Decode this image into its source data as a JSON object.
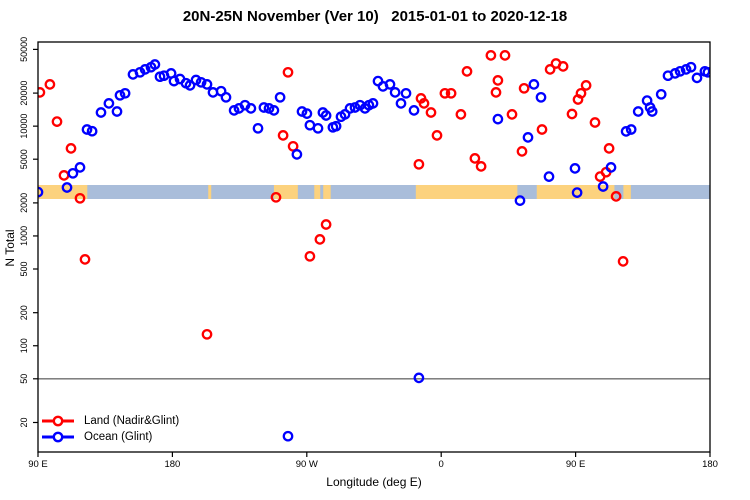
{
  "page": {
    "background": "#ffffff"
  },
  "chart_data": {
    "type": "scatter",
    "title": "20N-25N November (Ver 10)   2015-01-01 to 2020-12-18",
    "xlabel": "Longitude (deg E)",
    "ylabel": "N Total",
    "x_axis": {
      "description": "longitude, spanning 450 degrees eastward starting at 90E (wraps past dateline and Greenwich)",
      "range_deg": [
        0,
        450
      ],
      "tick_positions_deg": [
        0,
        90,
        180,
        270,
        360,
        450
      ],
      "tick_labels": [
        "90 E",
        "180",
        "90 W",
        "0",
        "90 E",
        "180"
      ]
    },
    "y_axis": {
      "scale": "log10",
      "range": [
        11,
        58000
      ],
      "tick_values": [
        20,
        50,
        100,
        200,
        500,
        1000,
        2000,
        5000,
        10000,
        20000,
        50000
      ],
      "tick_labels": [
        "20",
        "50",
        "100",
        "200",
        "500",
        "1000",
        "2000",
        "5000",
        "10000",
        "20000",
        "50000"
      ]
    },
    "reference_line": {
      "y_value": 50,
      "color": "#6e6e6e"
    },
    "map_strip": {
      "center_value": 2500,
      "ocean_color": "#a9bdda",
      "land_color": "#fcd27e",
      "land_segments_deg": [
        [
          0,
          33
        ],
        [
          114,
          116
        ],
        [
          158,
          174
        ],
        [
          185,
          189
        ],
        [
          191,
          196
        ],
        [
          253,
          321
        ],
        [
          334,
          386
        ],
        [
          392,
          397
        ]
      ]
    },
    "legend": {
      "position": "bottom-left",
      "entries": [
        {
          "label": "Land (Nadir&Glint)",
          "color": "#ff0000"
        },
        {
          "label": "Ocean (Glint)",
          "color": "#0000ff"
        }
      ]
    },
    "series": [
      {
        "name": "Land (Nadir&Glint)",
        "color": "#ff0000",
        "marker": "open-circle",
        "points": [
          [
            1.3,
            20300
          ],
          [
            8,
            24000
          ],
          [
            12.7,
            11000
          ],
          [
            17.4,
            3560
          ],
          [
            22.1,
            6270
          ],
          [
            28.1,
            2200
          ],
          [
            31.5,
            612
          ],
          [
            113.2,
            127
          ],
          [
            159.4,
            2250
          ],
          [
            164.1,
            8240
          ],
          [
            167.4,
            30900
          ],
          [
            170.8,
            6550
          ],
          [
            182.1,
            652
          ],
          [
            188.8,
            931
          ],
          [
            192.9,
            1270
          ],
          [
            255.1,
            4490
          ],
          [
            256.5,
            17900
          ],
          [
            258.5,
            16100
          ],
          [
            263.2,
            13300
          ],
          [
            267.2,
            8240
          ],
          [
            272.5,
            19900
          ],
          [
            276.6,
            19900
          ],
          [
            283.2,
            12800
          ],
          [
            287.3,
            31500
          ],
          [
            292.6,
            5080
          ],
          [
            296.7,
            4300
          ],
          [
            303.3,
            44100
          ],
          [
            306.7,
            20300
          ],
          [
            308,
            26100
          ],
          [
            312.7,
            44100
          ],
          [
            317.4,
            12800
          ],
          [
            324.1,
            5890
          ],
          [
            325.5,
            22100
          ],
          [
            337.5,
            9330
          ],
          [
            342.9,
            32900
          ],
          [
            346.9,
            37200
          ],
          [
            351.6,
            35000
          ],
          [
            357.6,
            12900
          ],
          [
            361.6,
            17500
          ],
          [
            363.6,
            19900
          ],
          [
            367,
            23500
          ],
          [
            373,
            10800
          ],
          [
            376.4,
            3470
          ],
          [
            380.4,
            3810
          ],
          [
            382.4,
            6270
          ],
          [
            387.1,
            2290
          ],
          [
            391.8,
            586
          ]
        ]
      },
      {
        "name": "Ocean (Glint)",
        "color": "#0000ff",
        "marker": "open-circle",
        "points": [
          [
            0,
            2510
          ],
          [
            19.4,
            2760
          ],
          [
            23.4,
            3720
          ],
          [
            28.1,
            4210
          ],
          [
            32.8,
            9330
          ],
          [
            36.2,
            9000
          ],
          [
            42.2,
            13300
          ],
          [
            47.5,
            16100
          ],
          [
            52.9,
            13600
          ],
          [
            54.9,
            19100
          ],
          [
            58.3,
            19900
          ],
          [
            63.6,
            29600
          ],
          [
            68.3,
            30900
          ],
          [
            71.7,
            32900
          ],
          [
            75.7,
            34400
          ],
          [
            78.3,
            36400
          ],
          [
            81.7,
            28200
          ],
          [
            84.4,
            28800
          ],
          [
            89.1,
            30200
          ],
          [
            91.1,
            25700
          ],
          [
            95.1,
            26900
          ],
          [
            99.1,
            24600
          ],
          [
            101.8,
            23500
          ],
          [
            105.8,
            26300
          ],
          [
            109.2,
            25100
          ],
          [
            113.2,
            24000
          ],
          [
            117.2,
            20300
          ],
          [
            122.6,
            20800
          ],
          [
            125.9,
            18300
          ],
          [
            131.3,
            13900
          ],
          [
            134.6,
            14500
          ],
          [
            138.6,
            15500
          ],
          [
            142.6,
            14500
          ],
          [
            147.3,
            9550
          ],
          [
            151.3,
            14800
          ],
          [
            154.7,
            14500
          ],
          [
            158,
            13900
          ],
          [
            162.1,
            18300
          ],
          [
            167.4,
            15
          ],
          [
            173.4,
            5530
          ],
          [
            176.8,
            13600
          ],
          [
            180.1,
            13000
          ],
          [
            182.1,
            10200
          ],
          [
            187.5,
            9550
          ],
          [
            190.8,
            13300
          ],
          [
            192.9,
            12500
          ],
          [
            197.5,
            9760
          ],
          [
            199.6,
            9980
          ],
          [
            202.9,
            12200
          ],
          [
            205.6,
            12800
          ],
          [
            208.9,
            14500
          ],
          [
            212.3,
            14800
          ],
          [
            215.6,
            15500
          ],
          [
            219,
            14500
          ],
          [
            221.6,
            15500
          ],
          [
            224.3,
            16100
          ],
          [
            227.7,
            25700
          ],
          [
            231,
            23000
          ],
          [
            235.7,
            24000
          ],
          [
            239.1,
            20300
          ],
          [
            243.1,
            16100
          ],
          [
            246.4,
            19900
          ],
          [
            251.8,
            13900
          ],
          [
            255.1,
            51
          ],
          [
            308,
            11600
          ],
          [
            322.8,
            2100
          ],
          [
            328.1,
            7900
          ],
          [
            332.1,
            24000
          ],
          [
            336.8,
            18300
          ],
          [
            342.2,
            3470
          ],
          [
            359.6,
            4120
          ],
          [
            361,
            2480
          ],
          [
            378.4,
            2820
          ],
          [
            383.7,
            4210
          ],
          [
            393.8,
            8960
          ],
          [
            397.2,
            9330
          ],
          [
            401.9,
            13600
          ],
          [
            407.9,
            17100
          ],
          [
            409.9,
            14800
          ],
          [
            411.3,
            13600
          ],
          [
            417.3,
            19500
          ],
          [
            421.9,
            28800
          ],
          [
            426.6,
            30200
          ],
          [
            430,
            31600
          ],
          [
            434,
            32900
          ],
          [
            437.3,
            34400
          ],
          [
            441.3,
            27500
          ],
          [
            446.6,
            31600
          ],
          [
            448.6,
            30900
          ]
        ]
      }
    ]
  }
}
